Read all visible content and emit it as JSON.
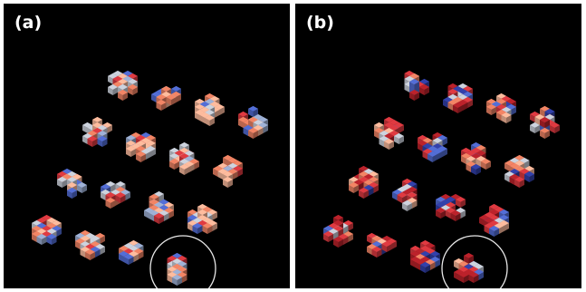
{
  "panels": [
    {
      "label": "(a)",
      "seed": 7,
      "palette": "mixed"
    },
    {
      "label": "(b)",
      "seed": 31,
      "palette": "red"
    }
  ],
  "colors": {
    "red": "#c8343a",
    "dark_red": "#a81e26",
    "salmon": "#d9775a",
    "peach": "#e3a88d",
    "light_gray": "#b7bcc6",
    "blue_gray": "#8e9fc0",
    "blue": "#4a62c0",
    "dark_blue": "#2d3a9a",
    "highlight_circle": "#e8e8e8"
  },
  "grid": {
    "rows": 4,
    "cols": 4,
    "highlighted_cluster": {
      "row": 3,
      "col": 3
    }
  }
}
